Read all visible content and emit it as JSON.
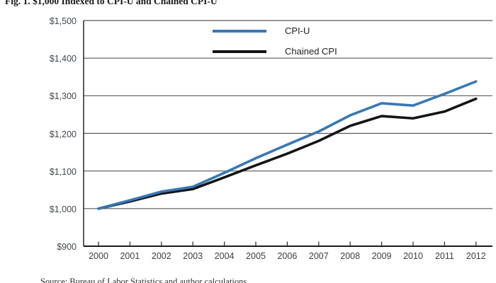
{
  "figure": {
    "title": "Fig. 1. $1,000 Indexed to CPI-U and Chained CPI-U",
    "source_note": "Source: Bureau of Labor Statistics and author calculations"
  },
  "legend": {
    "items": [
      {
        "label": "CPI-U",
        "color": "#3778b5"
      },
      {
        "label": "Chained CPI",
        "color": "#141414"
      }
    ]
  },
  "colors": {
    "cpi_u_line": "#3778b5",
    "chained_cpi_line": "#141414",
    "gridline": "#595959",
    "axis": "#1a1a1a"
  },
  "chart_data": {
    "type": "line",
    "title": "Fig. 1. $1,000 Indexed to CPI-U and Chained CPI-U",
    "x": [
      2000,
      2001,
      2002,
      2003,
      2004,
      2005,
      2006,
      2007,
      2008,
      2009,
      2010,
      2011,
      2012
    ],
    "series": [
      {
        "name": "CPI-U",
        "color": "#3778b5",
        "values": [
          1000,
          1022,
          1045,
          1058,
          1095,
          1134,
          1170,
          1205,
          1248,
          1280,
          1274,
          1305,
          1338
        ]
      },
      {
        "name": "Chained CPI",
        "color": "#141414",
        "values": [
          1000,
          1019,
          1040,
          1052,
          1083,
          1115,
          1146,
          1180,
          1220,
          1246,
          1240,
          1258,
          1292
        ]
      }
    ],
    "ylim": [
      900,
      1500
    ],
    "ytick_step": 100,
    "ytick_labels": [
      "$900",
      "$1,000",
      "$1,100",
      "$1,200",
      "$1,300",
      "$1,400",
      "$1,500"
    ],
    "xlabel": "",
    "ylabel": "",
    "grid": "horizontal",
    "legend_position": "top-center-inside"
  }
}
